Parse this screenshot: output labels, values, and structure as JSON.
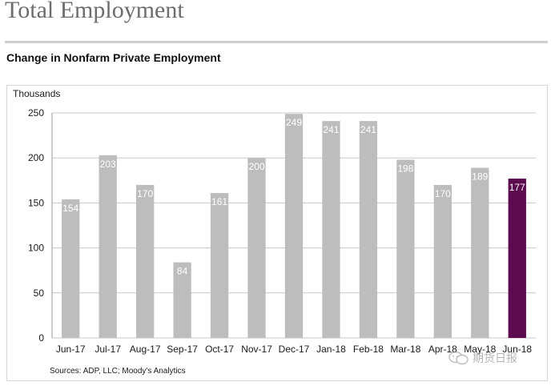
{
  "page": {
    "title": "Total Employment",
    "section_title": "Change in Nonfarm Private Employment",
    "watermark_text": "期货日报",
    "watermark_icon": "wechat-icon"
  },
  "chart_data": {
    "type": "bar",
    "title": "Change in Nonfarm Private Employment",
    "ylabel": "Thousands",
    "xlabel": "",
    "source": "Sources: ADP, LLC; Moody's Analytics",
    "ylim": [
      0,
      250
    ],
    "yticks": [
      0,
      50,
      100,
      150,
      200,
      250
    ],
    "grid": true,
    "legend": "none",
    "categories": [
      "Jun-17",
      "Jul-17",
      "Aug-17",
      "Sep-17",
      "Oct-17",
      "Nov-17",
      "Dec-17",
      "Jan-18",
      "Feb-18",
      "Mar-18",
      "Apr-18",
      "May-18",
      "Jun-18"
    ],
    "values": [
      154,
      203,
      170,
      84,
      161,
      200,
      249,
      241,
      241,
      198,
      170,
      189,
      177
    ],
    "data_labels": [
      "154",
      "203",
      "170",
      "84",
      "161",
      "200",
      "249",
      "241",
      "241",
      "198",
      "170",
      "189",
      "177"
    ],
    "colors": {
      "bar": "#bdbdbd",
      "highlight": "#5b0b4e",
      "grid": "#c8c8c8"
    },
    "highlight_index": 12
  }
}
